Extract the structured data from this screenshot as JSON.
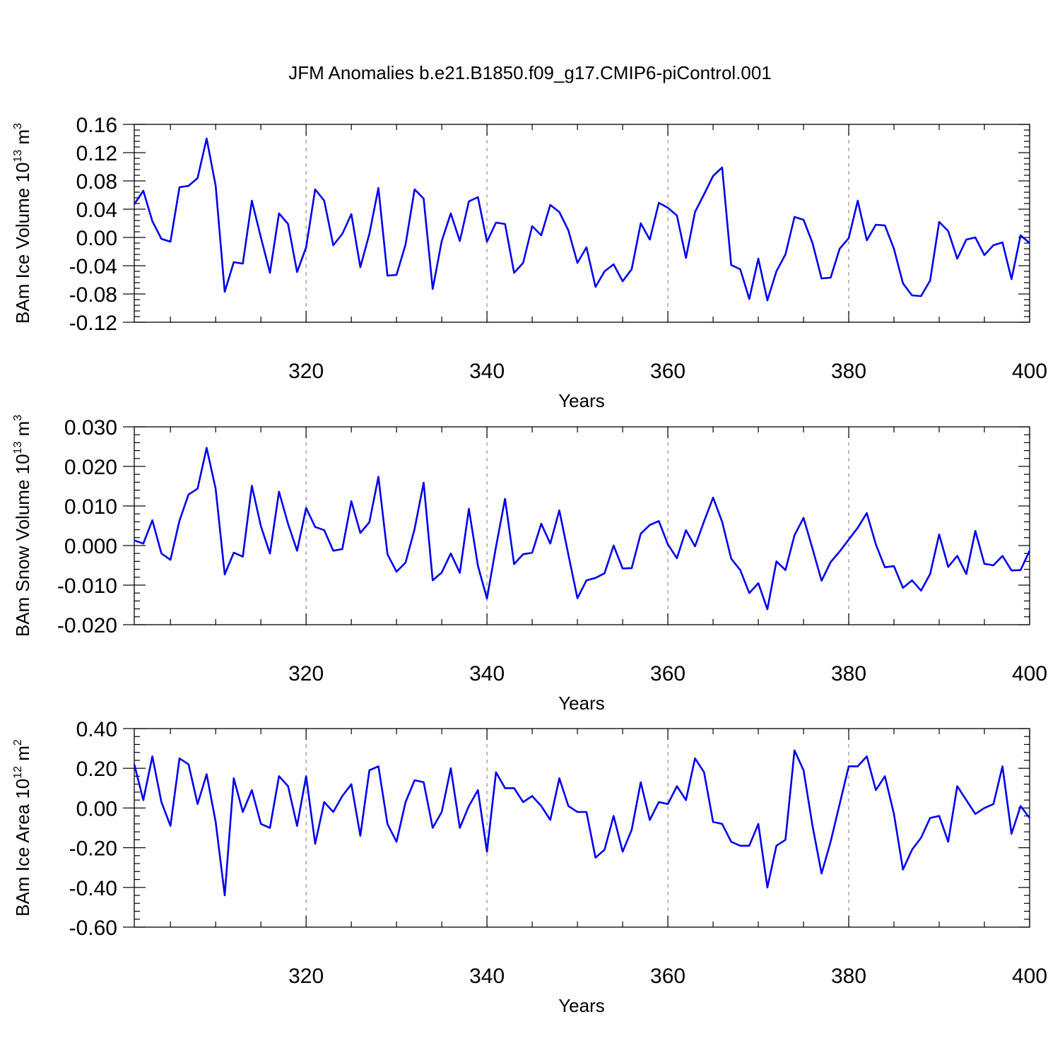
{
  "title": "JFM Anomalies b.e21.B1850.f09_g17.CMIP6-piControl.001",
  "chart_data": [
    {
      "type": "line",
      "xlabel": "Years",
      "ylabel": "BAm Ice Volume 10",
      "ylabel_exp": "13",
      "ylabel_unit": " m",
      "ylabel_unit_exp": "3",
      "xlim": [
        301,
        400
      ],
      "ylim": [
        -0.12,
        0.16
      ],
      "ytick_step": 0.04,
      "yminor_step": 0.008,
      "ydecimals": 2,
      "xticks": [
        320,
        340,
        360,
        380,
        400
      ],
      "x_start": 301,
      "color": "#0000ee",
      "grid": "vertical dashed at major x ticks",
      "values": [
        0.047,
        0.066,
        0.023,
        -0.002,
        -0.006,
        0.071,
        0.073,
        0.084,
        0.14,
        0.073,
        -0.077,
        -0.035,
        -0.037,
        0.052,
        0.0,
        -0.05,
        0.034,
        0.019,
        -0.049,
        -0.014,
        0.068,
        0.052,
        -0.011,
        0.005,
        0.033,
        -0.042,
        0.005,
        0.07,
        -0.054,
        -0.053,
        -0.01,
        0.068,
        0.055,
        -0.073,
        -0.005,
        0.034,
        -0.005,
        0.051,
        0.057,
        -0.006,
        0.021,
        0.019,
        -0.05,
        -0.036,
        0.016,
        0.003,
        0.046,
        0.036,
        0.01,
        -0.036,
        -0.014,
        -0.07,
        -0.048,
        -0.038,
        -0.062,
        -0.045,
        0.02,
        -0.003,
        0.049,
        0.042,
        0.031,
        -0.029,
        0.036,
        0.061,
        0.087,
        0.099,
        -0.039,
        -0.045,
        -0.087,
        -0.03,
        -0.089,
        -0.048,
        -0.024,
        0.029,
        0.025,
        -0.008,
        -0.058,
        -0.057,
        -0.016,
        -0.001,
        0.052,
        -0.004,
        0.018,
        0.017,
        -0.016,
        -0.065,
        -0.082,
        -0.083,
        -0.061,
        0.022,
        0.009,
        -0.03,
        -0.003,
        0.0,
        -0.025,
        -0.011,
        -0.007,
        -0.059,
        0.003,
        -0.008
      ]
    },
    {
      "type": "line",
      "xlabel": "Years",
      "ylabel": "BAm Snow Volume 10",
      "ylabel_exp": "13",
      "ylabel_unit": " m",
      "ylabel_unit_exp": "3",
      "xlim": [
        301,
        400
      ],
      "ylim": [
        -0.02,
        0.03
      ],
      "ytick_step": 0.01,
      "yminor_step": 0.002,
      "ydecimals": 3,
      "xticks": [
        320,
        340,
        360,
        380,
        400
      ],
      "x_start": 301,
      "color": "#0000ee",
      "grid": "vertical dashed at major x ticks",
      "values": [
        0.0013,
        0.0005,
        0.0064,
        -0.002,
        -0.0036,
        0.0063,
        0.0129,
        0.0144,
        0.0247,
        0.0143,
        -0.0073,
        -0.0018,
        -0.0028,
        0.0151,
        0.0049,
        -0.002,
        0.0136,
        0.0055,
        -0.0013,
        0.0095,
        0.0047,
        0.0039,
        -0.0013,
        -0.0009,
        0.0112,
        0.0032,
        0.0059,
        0.0174,
        -0.0022,
        -0.0066,
        -0.0043,
        0.0042,
        0.0159,
        -0.0088,
        -0.0068,
        -0.002,
        -0.0069,
        0.0093,
        -0.0051,
        -0.0134,
        -0.0003,
        0.0118,
        -0.0047,
        -0.0022,
        -0.0018,
        0.0055,
        0.0005,
        0.0089,
        -0.0023,
        -0.0133,
        -0.0088,
        -0.0082,
        -0.007,
        0.0,
        -0.0058,
        -0.0057,
        0.003,
        0.0052,
        0.0062,
        0.0003,
        -0.0032,
        0.0039,
        -0.0002,
        0.0061,
        0.0121,
        0.006,
        -0.0033,
        -0.0062,
        -0.012,
        -0.0095,
        -0.0161,
        -0.004,
        -0.0062,
        0.0026,
        0.007,
        -0.0008,
        -0.0089,
        -0.0042,
        -0.0015,
        0.0015,
        0.0045,
        0.0082,
        0.0003,
        -0.0055,
        -0.0052,
        -0.0107,
        -0.0088,
        -0.0114,
        -0.0072,
        0.0028,
        -0.0054,
        -0.0026,
        -0.0072,
        0.0037,
        -0.0046,
        -0.005,
        -0.0026,
        -0.0063,
        -0.0062,
        -0.0013
      ]
    },
    {
      "type": "line",
      "xlabel": "Years",
      "ylabel": "BAm Ice Area 10",
      "ylabel_exp": "12",
      "ylabel_unit": " m",
      "ylabel_unit_exp": "2",
      "xlim": [
        301,
        400
      ],
      "ylim": [
        -0.6,
        0.4
      ],
      "ytick_step": 0.2,
      "yminor_step": 0.04,
      "ydecimals": 2,
      "xticks": [
        320,
        340,
        360,
        380,
        400
      ],
      "x_start": 301,
      "color": "#0000ee",
      "grid": "vertical dashed at major x ticks",
      "values": [
        0.22,
        0.04,
        0.26,
        0.03,
        -0.09,
        0.25,
        0.22,
        0.02,
        0.17,
        -0.07,
        -0.44,
        0.15,
        -0.02,
        0.09,
        -0.08,
        -0.1,
        0.16,
        0.11,
        -0.09,
        0.16,
        -0.18,
        0.03,
        -0.02,
        0.06,
        0.12,
        -0.14,
        0.19,
        0.21,
        -0.08,
        -0.17,
        0.03,
        0.14,
        0.13,
        -0.1,
        -0.02,
        0.2,
        -0.1,
        0.01,
        0.09,
        -0.22,
        0.18,
        0.1,
        0.1,
        0.03,
        0.06,
        0.01,
        -0.06,
        0.15,
        0.01,
        -0.02,
        -0.02,
        -0.25,
        -0.21,
        -0.04,
        -0.22,
        -0.11,
        0.13,
        -0.06,
        0.03,
        0.02,
        0.11,
        0.04,
        0.25,
        0.18,
        -0.07,
        -0.08,
        -0.17,
        -0.19,
        -0.19,
        -0.08,
        -0.4,
        -0.19,
        -0.16,
        0.29,
        0.19,
        -0.09,
        -0.33,
        -0.17,
        0.02,
        0.21,
        0.21,
        0.26,
        0.09,
        0.16,
        -0.03,
        -0.31,
        -0.21,
        -0.15,
        -0.05,
        -0.04,
        -0.17,
        0.11,
        0.04,
        -0.03,
        0.0,
        0.02,
        0.21,
        -0.13,
        0.01,
        -0.05
      ]
    }
  ]
}
